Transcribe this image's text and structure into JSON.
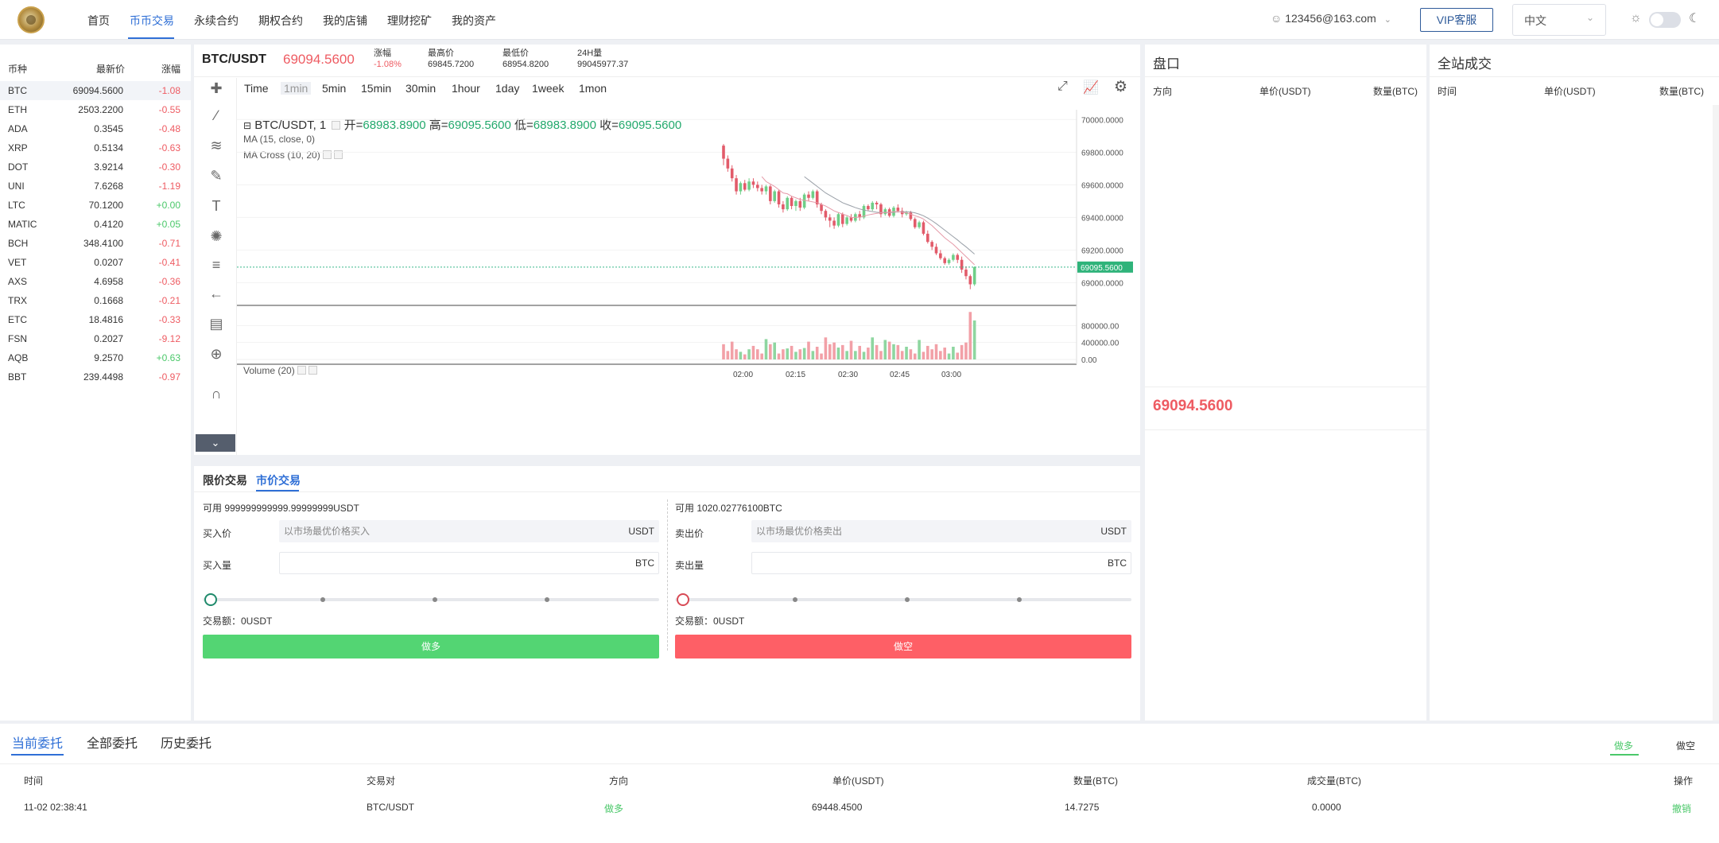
{
  "nav": {
    "items": [
      "首页",
      "币币交易",
      "永续合约",
      "期权合约",
      "我的店铺",
      "理财挖矿",
      "我的资产"
    ],
    "active": "币币交易",
    "user": "123456@163.com",
    "vip": "VIP客服",
    "lang": "中文"
  },
  "market": {
    "headers": [
      "币种",
      "最新价",
      "涨幅"
    ],
    "rows": [
      {
        "symbol": "BTC",
        "price": "69094.5600",
        "change": "-1.08"
      },
      {
        "symbol": "ETH",
        "price": "2503.2200",
        "change": "-0.55"
      },
      {
        "symbol": "ADA",
        "price": "0.3545",
        "change": "-0.48"
      },
      {
        "symbol": "XRP",
        "price": "0.5134",
        "change": "-0.63"
      },
      {
        "symbol": "DOT",
        "price": "3.9214",
        "change": "-0.30"
      },
      {
        "symbol": "UNI",
        "price": "7.6268",
        "change": "-1.19"
      },
      {
        "symbol": "LTC",
        "price": "70.1200",
        "change": "+0.00"
      },
      {
        "symbol": "MATIC",
        "price": "0.4120",
        "change": "+0.05"
      },
      {
        "symbol": "BCH",
        "price": "348.4100",
        "change": "-0.71"
      },
      {
        "symbol": "VET",
        "price": "0.0207",
        "change": "-0.41"
      },
      {
        "symbol": "AXS",
        "price": "4.6958",
        "change": "-0.36"
      },
      {
        "symbol": "TRX",
        "price": "0.1668",
        "change": "-0.21"
      },
      {
        "symbol": "ETC",
        "price": "18.4816",
        "change": "-0.33"
      },
      {
        "symbol": "FSN",
        "price": "0.2027",
        "change": "-9.12"
      },
      {
        "symbol": "AQB",
        "price": "9.2570",
        "change": "+0.63"
      },
      {
        "symbol": "BBT",
        "price": "239.4498",
        "change": "-0.97"
      }
    ]
  },
  "ticker": {
    "pair": "BTC/USDT",
    "price": "69094.5600",
    "change_label": "涨幅",
    "change": "-1.08%",
    "high_label": "最高价",
    "high": "69845.7200",
    "low_label": "最低价",
    "low": "68954.8200",
    "vol_label": "24H量",
    "vol": "99045977.37"
  },
  "timeframes": [
    "Time",
    "1min",
    "5min",
    "15min",
    "30min",
    "1hour",
    "1day",
    "1week",
    "1mon"
  ],
  "active_timeframe": "1min",
  "legend": {
    "title": "BTC/USDT, 1",
    "open_label": "开=",
    "open": "68983.8900",
    "high_label": "高=",
    "high": "69095.5600",
    "low_label": "低=",
    "low": "68983.8900",
    "close_label": "收=",
    "close": "69095.5600",
    "ma": "MA (15, close, 0)",
    "macross": "MA Cross (10, 20)",
    "volume": "Volume (20)"
  },
  "chart_data": {
    "type": "candlestick",
    "price_axis": {
      "ticks": [
        "70000.0000",
        "69800.0000",
        "69600.0000",
        "69400.0000",
        "69200.0000",
        "69000.0000"
      ],
      "ylim": [
        68890,
        70060
      ]
    },
    "volume_axis": {
      "ticks": [
        "800000.00",
        "400000.00",
        "0.00"
      ],
      "ylim": [
        0,
        1200000
      ]
    },
    "x_ticks": [
      "02:00",
      "02:15",
      "02:30",
      "02:45",
      "03:00"
    ],
    "last_price_label": "69095.5600",
    "last_price": 69095.56,
    "candles": [
      [
        69840,
        69760,
        69850,
        69720
      ],
      [
        69760,
        69700,
        69780,
        69680
      ],
      [
        69700,
        69640,
        69720,
        69620
      ],
      [
        69640,
        69560,
        69660,
        69540
      ],
      [
        69560,
        69610,
        69620,
        69540
      ],
      [
        69610,
        69570,
        69630,
        69560
      ],
      [
        69570,
        69620,
        69640,
        69560
      ],
      [
        69620,
        69600,
        69640,
        69580
      ],
      [
        69600,
        69580,
        69620,
        69560
      ],
      [
        69580,
        69560,
        69600,
        69540
      ],
      [
        69560,
        69590,
        69600,
        69540
      ],
      [
        69590,
        69500,
        69600,
        69480
      ],
      [
        69500,
        69560,
        69570,
        69490
      ],
      [
        69560,
        69480,
        69570,
        69460
      ],
      [
        69480,
        69450,
        69500,
        69430
      ],
      [
        69450,
        69520,
        69530,
        69440
      ],
      [
        69520,
        69470,
        69530,
        69450
      ],
      [
        69470,
        69500,
        69510,
        69440
      ],
      [
        69500,
        69460,
        69520,
        69440
      ],
      [
        69460,
        69540,
        69550,
        69450
      ],
      [
        69540,
        69520,
        69560,
        69500
      ],
      [
        69520,
        69560,
        69570,
        69510
      ],
      [
        69560,
        69480,
        69570,
        69460
      ],
      [
        69480,
        69440,
        69490,
        69420
      ],
      [
        69440,
        69400,
        69450,
        69380
      ],
      [
        69400,
        69380,
        69420,
        69340
      ],
      [
        69380,
        69350,
        69400,
        69330
      ],
      [
        69350,
        69420,
        69430,
        69340
      ],
      [
        69420,
        69360,
        69430,
        69340
      ],
      [
        69360,
        69400,
        69410,
        69350
      ],
      [
        69400,
        69380,
        69420,
        69370
      ],
      [
        69380,
        69420,
        69430,
        69370
      ],
      [
        69420,
        69400,
        69440,
        69380
      ],
      [
        69400,
        69470,
        69480,
        69390
      ],
      [
        69470,
        69450,
        69480,
        69440
      ],
      [
        69450,
        69490,
        69500,
        69440
      ],
      [
        69490,
        69480,
        69500,
        69450
      ],
      [
        69480,
        69420,
        69490,
        69400
      ],
      [
        69420,
        69450,
        69460,
        69410
      ],
      [
        69450,
        69410,
        69460,
        69400
      ],
      [
        69410,
        69460,
        69470,
        69400
      ],
      [
        69460,
        69440,
        69480,
        69430
      ],
      [
        69440,
        69420,
        69460,
        69400
      ],
      [
        69420,
        69430,
        69440,
        69410
      ],
      [
        69430,
        69390,
        69440,
        69380
      ],
      [
        69390,
        69340,
        69400,
        69330
      ],
      [
        69340,
        69370,
        69380,
        69330
      ],
      [
        69370,
        69300,
        69380,
        69290
      ],
      [
        69300,
        69250,
        69320,
        69240
      ],
      [
        69250,
        69220,
        69260,
        69200
      ],
      [
        69220,
        69180,
        69240,
        69170
      ],
      [
        69180,
        69150,
        69200,
        69140
      ],
      [
        69150,
        69120,
        69160,
        69110
      ],
      [
        69120,
        69140,
        69150,
        69110
      ],
      [
        69140,
        69170,
        69180,
        69130
      ],
      [
        69170,
        69140,
        69180,
        69120
      ],
      [
        69140,
        69080,
        69160,
        69060
      ],
      [
        69080,
        69040,
        69100,
        69020
      ],
      [
        69040,
        68990,
        69050,
        68960
      ],
      [
        68990,
        69095,
        69100,
        68980
      ]
    ],
    "volumes": [
      360000,
      200000,
      420000,
      240000,
      180000,
      120000,
      240000,
      320000,
      240000,
      140000,
      480000,
      360000,
      400000,
      140000,
      240000,
      260000,
      320000,
      180000,
      240000,
      270000,
      420000,
      200000,
      300000,
      140000,
      520000,
      360000,
      400000,
      280000,
      340000,
      200000,
      440000,
      200000,
      320000,
      180000,
      280000,
      520000,
      340000,
      200000,
      460000,
      420000,
      360000,
      340000,
      200000,
      300000,
      240000,
      140000,
      460000,
      180000,
      320000,
      240000,
      360000,
      200000,
      280000,
      140000,
      300000,
      160000,
      340000,
      400000,
      1120000,
      920000
    ],
    "ma_fast": [
      null,
      null,
      null,
      null,
      null,
      null,
      null,
      null,
      null,
      69650,
      69620,
      69605,
      69590,
      69570,
      69550,
      69545,
      69530,
      69520,
      69510,
      69505,
      69500,
      69495,
      69490,
      69480,
      69470,
      69455,
      69440,
      69430,
      69420,
      69412,
      69400,
      69400,
      69402,
      69408,
      69415,
      69420,
      69425,
      69428,
      69430,
      69432,
      69435,
      69436,
      69432,
      69428,
      69420,
      69410,
      69402,
      69390,
      69370,
      69350,
      69325,
      69300,
      69275,
      69255,
      69235,
      69210,
      69185,
      69160,
      69135,
      69110
    ],
    "ma_slow": [
      null,
      null,
      null,
      null,
      null,
      null,
      null,
      null,
      null,
      null,
      null,
      null,
      null,
      null,
      null,
      null,
      null,
      null,
      null,
      69650,
      69630,
      69610,
      69590,
      69570,
      69550,
      69535,
      69520,
      69505,
      69490,
      69480,
      69470,
      69460,
      69452,
      69445,
      69440,
      69436,
      69432,
      69430,
      69430,
      69430,
      69432,
      69434,
      69435,
      69435,
      69433,
      69428,
      69420,
      69410,
      69396,
      69380,
      69362,
      69342,
      69322,
      69302,
      69282,
      69262,
      69240,
      69220,
      69198,
      69175
    ],
    "ylabel": "",
    "xlabel": ""
  },
  "trade": {
    "tab_limit": "限价交易",
    "tab_market": "市价交易",
    "buy": {
      "available": "可用 999999999999.99999999USDT",
      "price_label": "买入价",
      "price_placeholder": "以市场最优价格买入",
      "price_unit": "USDT",
      "amount_label": "买入量",
      "amount_unit": "BTC",
      "total": "交易额：0USDT",
      "button": "做多"
    },
    "sell": {
      "available": "可用 1020.02776100BTC",
      "price_label": "卖出价",
      "price_placeholder": "以市场最优价格卖出",
      "price_unit": "USDT",
      "amount_label": "卖出量",
      "amount_unit": "BTC",
      "total": "交易额：0USDT",
      "button": "做空"
    },
    "buy_color": "#53d573",
    "sell_color": "#fe5f66"
  },
  "book": {
    "title": "盘口",
    "headers": [
      "方向",
      "单价(USDT)",
      "数量(BTC)"
    ],
    "last_price": "69094.5600"
  },
  "trades": {
    "title": "全站成交",
    "headers": [
      "时间",
      "单价(USDT)",
      "数量(BTC)"
    ]
  },
  "orders": {
    "tabs": [
      "当前委托",
      "全部委托",
      "历史委托"
    ],
    "filter_long": "做多",
    "filter_short": "做空",
    "headers": [
      "时间",
      "交易对",
      "方向",
      "单价(USDT)",
      "数量(BTC)",
      "成交量(BTC)",
      "操作"
    ],
    "row": {
      "time": "11-02 02:38:41",
      "pair": "BTC/USDT",
      "side": "做多",
      "price": "69448.4500",
      "qty": "14.7275",
      "filled": "0.0000",
      "action": "撤销"
    }
  }
}
